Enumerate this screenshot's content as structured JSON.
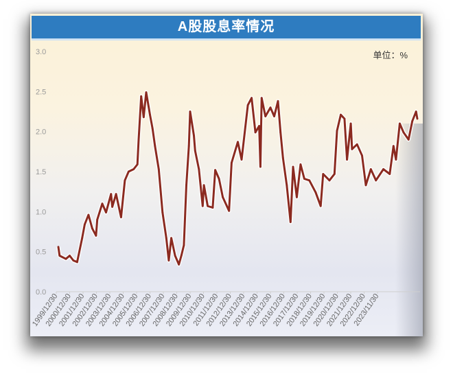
{
  "unit_label": "单位：%",
  "chart_data": {
    "type": "line",
    "title": "A股股息率情况",
    "xlabel": "",
    "ylabel": "",
    "ylim": [
      0,
      3.0
    ],
    "yticks": [
      "0.0",
      "0.5",
      "1.0",
      "1.5",
      "2.0",
      "2.5",
      "3.0"
    ],
    "xticks": [
      "1999/12/30",
      "2000/12/30",
      "2001/12/30",
      "2002/12/30",
      "2003/12/30",
      "2004/12/30",
      "2005/12/30",
      "2006/12/30",
      "2007/12/30",
      "2008/12/30",
      "2009/12/30",
      "2010/12/30",
      "2011/12/30",
      "2012/12/30",
      "2013/12/30",
      "2014/12/30",
      "2015/12/30",
      "2016/12/30",
      "2017/12/30",
      "2018/12/30",
      "2019/12/30",
      "2020/12/30",
      "2021/12/30",
      "2022/12/30",
      "2023/11/30"
    ],
    "grid": false,
    "line_color": "#8b2a20",
    "title_bar_color": "#2e7cc0",
    "series": [
      {
        "x": [
          "2000-01",
          "2000-02",
          "2000-07",
          "2000-10",
          "2001-01",
          "2001-04",
          "2001-08",
          "2001-10",
          "2002-01",
          "2002-04",
          "2002-07",
          "2002-08",
          "2002-12",
          "2003-03",
          "2003-07",
          "2003-08",
          "2003-11",
          "2004-03",
          "2004-06",
          "2004-09",
          "2005-01",
          "2005-04",
          "2005-05",
          "2005-07",
          "2005-09",
          "2005-11",
          "2006-02",
          "2006-04",
          "2006-06",
          "2006-09",
          "2006-12",
          "2007-03",
          "2007-05",
          "2007-07",
          "2007-10",
          "2008-01",
          "2008-03",
          "2008-05",
          "2008-07",
          "2008-09",
          "2008-10",
          "2009-01",
          "2009-02",
          "2009-05",
          "2009-08",
          "2009-09",
          "2009-12",
          "2010-04",
          "2010-06",
          "2010-09",
          "2010-12",
          "2011-05",
          "2011-07",
          "2011-12",
          "2012-03",
          "2012-08",
          "2012-11",
          "2013-02",
          "2013-05",
          "2013-06",
          "2013-07",
          "2013-10",
          "2014-02",
          "2014-05",
          "2014-08",
          "2014-10",
          "2014-12",
          "2015-03",
          "2015-06",
          "2015-08",
          "2015-11",
          "2016-02",
          "2016-05",
          "2016-09",
          "2017-02",
          "2017-06",
          "2017-08",
          "2018-01",
          "2018-05",
          "2018-07",
          "2018-10",
          "2019-01",
          "2019-03",
          "2019-06",
          "2019-07",
          "2019-11",
          "2020-03",
          "2020-06",
          "2020-10",
          "2021-02",
          "2021-08",
          "2022-01",
          "2022-04",
          "2022-06",
          "2022-09",
          "2022-12",
          "2023-04",
          "2023-07",
          "2023-10",
          "2023-11"
        ],
        "y": [
          0.56,
          0.45,
          0.41,
          0.45,
          0.39,
          0.37,
          0.67,
          0.84,
          0.96,
          0.79,
          0.7,
          0.9,
          1.1,
          0.99,
          1.22,
          1.06,
          1.22,
          0.93,
          1.39,
          1.5,
          1.53,
          1.59,
          1.9,
          2.44,
          2.18,
          2.49,
          2.21,
          2.04,
          1.82,
          1.53,
          0.99,
          0.67,
          0.39,
          0.67,
          0.45,
          0.34,
          0.45,
          0.58,
          1.33,
          1.82,
          2.25,
          1.95,
          1.76,
          1.53,
          1.07,
          1.33,
          1.07,
          1.05,
          1.52,
          1.41,
          1.18,
          1.01,
          1.61,
          1.87,
          1.65,
          2.33,
          2.42,
          1.99,
          2.07,
          1.56,
          2.42,
          2.19,
          2.3,
          2.19,
          2.38,
          1.99,
          1.67,
          1.33,
          0.87,
          1.56,
          1.18,
          1.59,
          1.41,
          1.39,
          1.24,
          1.07,
          1.47,
          1.39,
          1.47,
          2.01,
          2.21,
          2.16,
          1.65,
          2.1,
          1.78,
          1.84,
          1.7,
          1.33,
          1.53,
          1.39,
          1.53,
          1.47,
          1.82,
          1.65,
          2.1,
          1.99,
          1.9,
          2.13,
          2.25,
          2.16
        ]
      }
    ]
  }
}
